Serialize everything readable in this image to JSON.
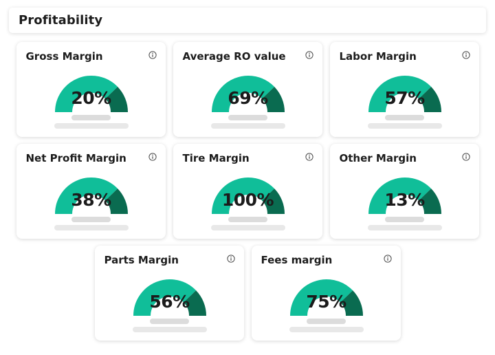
{
  "page": {
    "title": "Profitability"
  },
  "colors": {
    "gauge_primary": "#10BE99",
    "gauge_secondary": "#0A6B50",
    "skeleton_dark": "#DCDCDC",
    "skeleton_light": "#E8E8E8",
    "text_dark": "#1C1C1C",
    "card_bg": "#FFFFFF"
  },
  "icons": {
    "info": "info-icon"
  },
  "cards": [
    {
      "title": "Gross Margin",
      "value": "20%"
    },
    {
      "title": "Average RO value",
      "value": "69%"
    },
    {
      "title": "Labor Margin",
      "value": "57%"
    },
    {
      "title": "Net Profit Margin",
      "value": "38%"
    },
    {
      "title": "Tire Margin",
      "value": "100%"
    },
    {
      "title": "Other Margin",
      "value": "13%"
    },
    {
      "title": "Parts Margin",
      "value": "56%"
    },
    {
      "title": "Fees margin",
      "value": "75%"
    }
  ],
  "chart_data": {
    "type": "pie",
    "note": "eight semicircular gauge widgets, identical static arc styling; value shown as center label",
    "categories": [
      "Gross Margin",
      "Average RO value",
      "Labor Margin",
      "Net Profit Margin",
      "Tire Margin",
      "Other Margin",
      "Parts Margin",
      "Fees margin"
    ],
    "values": [
      20,
      69,
      57,
      38,
      100,
      13,
      56,
      75
    ],
    "title": "Profitability",
    "legend": false,
    "gauge_arc_degrees": 180,
    "gauge_secondary_segment_degrees": 44
  },
  "layout": {
    "rows": [
      3,
      3,
      2
    ]
  }
}
